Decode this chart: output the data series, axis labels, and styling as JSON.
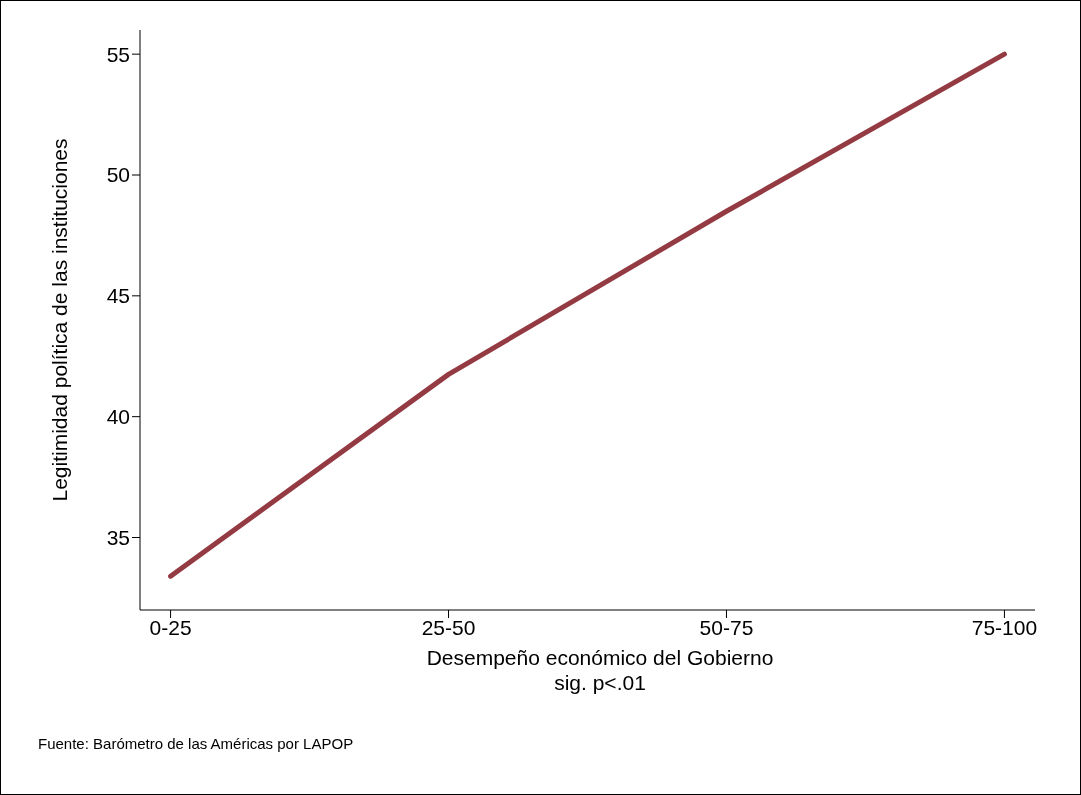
{
  "chart_data": {
    "type": "line",
    "categories": [
      "0-25",
      "25-50",
      "50-75",
      "75-100"
    ],
    "series": [
      {
        "color": "#943a42",
        "values": [
          33.4,
          41.75,
          48.5,
          55.0
        ]
      }
    ],
    "ylim": [
      32,
      56
    ],
    "yticks": [
      35,
      40,
      45,
      50,
      55
    ],
    "grid": false,
    "legend": false,
    "marker": "none",
    "line_style": "solid",
    "xlabel": "Desempeño económico del Gobierno",
    "ylabel": "Legitimidad política de las instituciones",
    "annotations": [
      "sig. p<.01",
      "Fuente: Barómetro de las Américas por LAPOP"
    ]
  }
}
